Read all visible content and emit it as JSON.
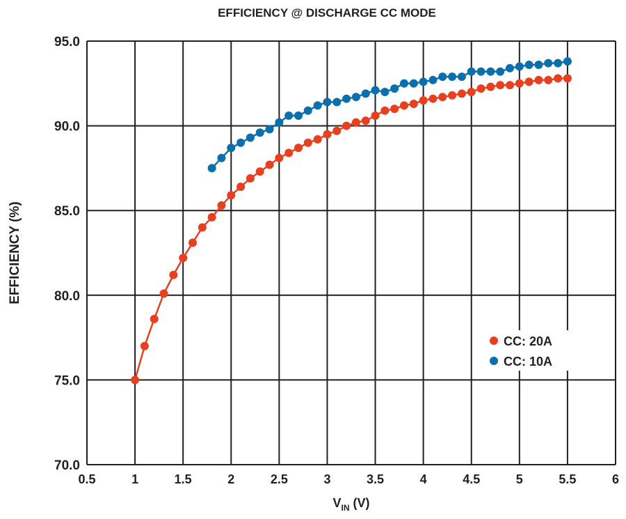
{
  "chart_data": {
    "type": "line",
    "title": "EFFICIENCY @ DISCHARGE CC MODE",
    "xlabel_main": "V",
    "xlabel_sub": "IN",
    "xlabel_unit": " (V)",
    "ylabel": "EFFICIENCY (%)",
    "xlim": [
      0.5,
      6
    ],
    "ylim": [
      70,
      95
    ],
    "grid": true,
    "legend_position": "right, lower-middle",
    "x_ticks": [
      "0.5",
      "1",
      "1.5",
      "2",
      "2.5",
      "3",
      "3.5",
      "4",
      "4.5",
      "5",
      "5.5",
      "6"
    ],
    "y_ticks": [
      "70.0",
      "75.0",
      "80.0",
      "85.0",
      "90.0",
      "95.0"
    ],
    "series": [
      {
        "name": "CC: 20A",
        "color": "#e8401f",
        "x": [
          1.0,
          1.1,
          1.2,
          1.3,
          1.4,
          1.5,
          1.6,
          1.7,
          1.8,
          1.9,
          2.0,
          2.1,
          2.2,
          2.3,
          2.4,
          2.5,
          2.6,
          2.7,
          2.8,
          2.9,
          3.0,
          3.1,
          3.2,
          3.3,
          3.4,
          3.5,
          3.6,
          3.7,
          3.8,
          3.9,
          4.0,
          4.1,
          4.2,
          4.3,
          4.4,
          4.5,
          4.6,
          4.7,
          4.8,
          4.9,
          5.0,
          5.1,
          5.2,
          5.3,
          5.4,
          5.5
        ],
        "y": [
          75.0,
          77.0,
          78.6,
          80.1,
          81.2,
          82.2,
          83.1,
          84.0,
          84.6,
          85.3,
          85.9,
          86.4,
          86.9,
          87.3,
          87.7,
          88.1,
          88.4,
          88.7,
          89.0,
          89.2,
          89.5,
          89.7,
          90.0,
          90.2,
          90.3,
          90.6,
          90.9,
          91.0,
          91.2,
          91.3,
          91.5,
          91.6,
          91.7,
          91.8,
          91.9,
          92.0,
          92.2,
          92.3,
          92.4,
          92.4,
          92.5,
          92.6,
          92.7,
          92.7,
          92.8,
          92.8
        ]
      },
      {
        "name": "CC: 10A",
        "color": "#0a6fad",
        "x": [
          1.8,
          1.9,
          2.0,
          2.1,
          2.2,
          2.3,
          2.4,
          2.5,
          2.6,
          2.7,
          2.8,
          2.9,
          3.0,
          3.1,
          3.2,
          3.3,
          3.4,
          3.5,
          3.6,
          3.7,
          3.8,
          3.9,
          4.0,
          4.1,
          4.2,
          4.3,
          4.4,
          4.5,
          4.6,
          4.7,
          4.8,
          4.9,
          5.0,
          5.1,
          5.2,
          5.3,
          5.4,
          5.5
        ],
        "y": [
          87.5,
          88.1,
          88.7,
          89.0,
          89.3,
          89.6,
          89.8,
          90.2,
          90.6,
          90.6,
          90.9,
          91.2,
          91.4,
          91.4,
          91.6,
          91.7,
          91.9,
          92.1,
          92.0,
          92.2,
          92.5,
          92.5,
          92.6,
          92.7,
          92.9,
          92.9,
          92.9,
          93.2,
          93.2,
          93.2,
          93.2,
          93.4,
          93.5,
          93.6,
          93.6,
          93.7,
          93.7,
          93.8
        ]
      }
    ]
  }
}
